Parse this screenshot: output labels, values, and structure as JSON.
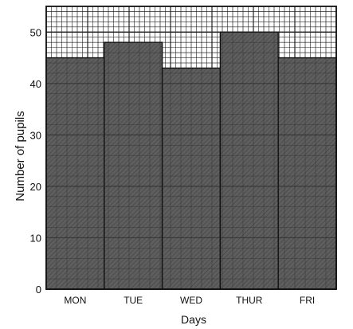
{
  "chart_data": {
    "type": "bar",
    "title": "",
    "xlabel": "Days",
    "ylabel": "Number of pupils",
    "categories": [
      "MON",
      "TUE",
      "WED",
      "THUR",
      "FRI"
    ],
    "values": [
      45,
      48,
      43,
      50,
      45
    ],
    "ylim": [
      0,
      55
    ],
    "yticks": [
      0,
      10,
      20,
      30,
      40,
      50
    ],
    "grid": true,
    "legend": "none",
    "colors": {
      "bar_fill": "#5e5e5e",
      "grid": "#222222",
      "background": "#ffffff"
    }
  }
}
